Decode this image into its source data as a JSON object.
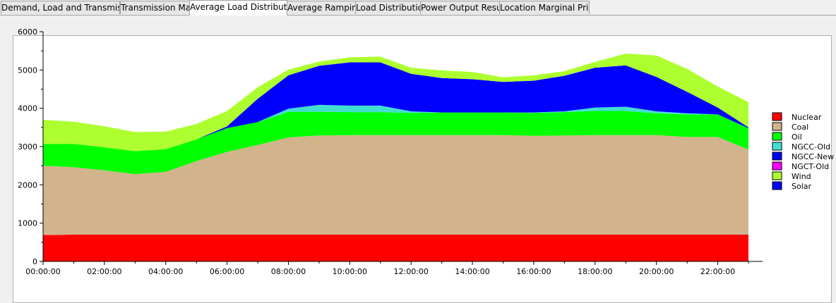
{
  "tabs": [
    {
      "label": "Demand, Load and Transmission",
      "active": false
    },
    {
      "label": "Transmission Map",
      "active": false
    },
    {
      "label": "Average Load Distribution",
      "active": true
    },
    {
      "label": "Average Ramping",
      "active": false
    },
    {
      "label": "Load Distribution",
      "active": false
    },
    {
      "label": "Power Output Result",
      "active": false
    },
    {
      "label": "Location Marginal Prices",
      "active": false
    }
  ],
  "chart_data": {
    "type": "area",
    "stacked": true,
    "title": "",
    "xlabel": "",
    "ylabel": "",
    "x": [
      "00:00:00",
      "01:00:00",
      "02:00:00",
      "03:00:00",
      "04:00:00",
      "05:00:00",
      "06:00:00",
      "07:00:00",
      "08:00:00",
      "09:00:00",
      "10:00:00",
      "11:00:00",
      "12:00:00",
      "13:00:00",
      "14:00:00",
      "15:00:00",
      "16:00:00",
      "17:00:00",
      "18:00:00",
      "19:00:00",
      "20:00:00",
      "21:00:00",
      "22:00:00",
      "23:00:00"
    ],
    "x_tick_labels": [
      "00:00:00",
      "02:00:00",
      "04:00:00",
      "06:00:00",
      "08:00:00",
      "10:00:00",
      "12:00:00",
      "14:00:00",
      "16:00:00",
      "18:00:00",
      "20:00:00",
      "22:00:00"
    ],
    "ylim": [
      0,
      6000
    ],
    "y_ticks": [
      0,
      1000,
      2000,
      3000,
      4000,
      5000,
      6000
    ],
    "grid": false,
    "legend_position": "right",
    "series": [
      {
        "name": "Nuclear",
        "color": "#ff0000",
        "values": [
          690,
          700,
          700,
          700,
          700,
          700,
          700,
          700,
          700,
          700,
          700,
          700,
          700,
          700,
          700,
          700,
          700,
          700,
          700,
          700,
          700,
          700,
          700,
          700
        ]
      },
      {
        "name": "Coal",
        "color": "#d2b48c",
        "values": [
          1810,
          1760,
          1680,
          1580,
          1640,
          1920,
          2160,
          2340,
          2540,
          2590,
          2600,
          2600,
          2600,
          2600,
          2600,
          2600,
          2580,
          2590,
          2600,
          2600,
          2600,
          2550,
          2550,
          2220
        ]
      },
      {
        "name": "Oil",
        "color": "#00ff00",
        "values": [
          570,
          610,
          600,
          600,
          590,
          570,
          620,
          600,
          670,
          620,
          600,
          600,
          580,
          590,
          590,
          590,
          600,
          610,
          630,
          630,
          570,
          590,
          590,
          560
        ]
      },
      {
        "name": "NGCC-Old",
        "color": "#40e0d0",
        "values": [
          0,
          0,
          0,
          0,
          0,
          0,
          0,
          0,
          80,
          180,
          170,
          170,
          40,
          0,
          0,
          0,
          10,
          20,
          90,
          110,
          50,
          30,
          0,
          0
        ]
      },
      {
        "name": "NGCC-New",
        "color": "#0000ff",
        "values": [
          0,
          0,
          0,
          0,
          0,
          0,
          50,
          610,
          870,
          1020,
          1130,
          1130,
          980,
          900,
          870,
          800,
          830,
          930,
          1040,
          1080,
          900,
          560,
          180,
          20
        ]
      },
      {
        "name": "NGCT-Old",
        "color": "#ff00ff",
        "values": [
          0,
          0,
          0,
          0,
          0,
          0,
          0,
          0,
          0,
          0,
          0,
          0,
          0,
          0,
          0,
          0,
          0,
          0,
          0,
          0,
          0,
          0,
          0,
          0
        ]
      },
      {
        "name": "Wind",
        "color": "#adff2f",
        "values": [
          630,
          580,
          550,
          500,
          460,
          400,
          400,
          300,
          150,
          110,
          130,
          150,
          160,
          200,
          190,
          120,
          140,
          120,
          150,
          310,
          560,
          600,
          550,
          660
        ]
      },
      {
        "name": "Solar",
        "color": "#0000ff",
        "values": [
          0,
          0,
          0,
          0,
          0,
          0,
          0,
          0,
          0,
          0,
          0,
          0,
          0,
          0,
          0,
          0,
          0,
          0,
          0,
          0,
          0,
          0,
          0,
          0
        ]
      }
    ]
  }
}
